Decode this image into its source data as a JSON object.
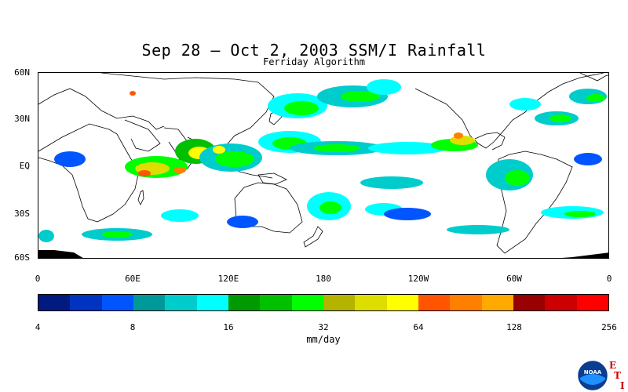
{
  "header": {
    "title": "Sep 28 – Oct 2, 2003 SSM/I Rainfall",
    "subtitle": "Ferriday Algorithm"
  },
  "map": {
    "lat_labels": [
      "60N",
      "30N",
      "EQ",
      "30S",
      "60S"
    ],
    "lon_labels": [
      "0",
      "60E",
      "120E",
      "180",
      "120W",
      "60W",
      "0"
    ],
    "land_color": "#ffffff",
    "coastline_color": "#000000",
    "no_data_color": "#000000"
  },
  "legend": {
    "colors": [
      "#001a80",
      "#0033c0",
      "#0055ff",
      "#009999",
      "#00cccc",
      "#00ffff",
      "#009900",
      "#00c000",
      "#00ff00",
      "#b3b300",
      "#dddd00",
      "#ffff00",
      "#ff5500",
      "#ff8000",
      "#ffaa00",
      "#990000",
      "#cc0000",
      "#ff0000"
    ],
    "tick_labels": [
      "4",
      "8",
      "16",
      "32",
      "64",
      "128",
      "256"
    ],
    "units": "mm/day"
  },
  "logo": {
    "text": "NOAA",
    "letters": [
      "E",
      "T",
      "I"
    ]
  }
}
